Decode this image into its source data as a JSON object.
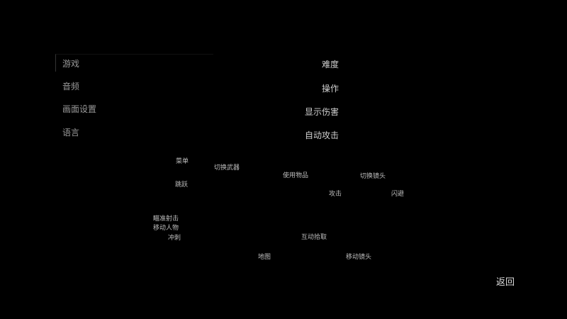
{
  "left_menu": {
    "items": [
      {
        "label": "游戏"
      },
      {
        "label": "音频"
      },
      {
        "label": "画面设置"
      },
      {
        "label": "语言"
      }
    ],
    "selected": 0
  },
  "options": [
    {
      "label": "难度"
    },
    {
      "label": "操作"
    },
    {
      "label": "显示伤害"
    },
    {
      "label": "自动攻击"
    }
  ],
  "controller_labels": {
    "menu": "菜单",
    "switch_weapon": "切换武器",
    "jump": "跳跃",
    "aim": "瞄准射击",
    "move": "移动人物",
    "sprint": "冲刺",
    "use_item": "使用物品",
    "switch_camera": "切换镜头",
    "attack": "攻击",
    "dodge": "闪避",
    "interact": "互动拾取",
    "map": "地图",
    "move_camera": "移动镜头"
  },
  "back_label": "返回"
}
